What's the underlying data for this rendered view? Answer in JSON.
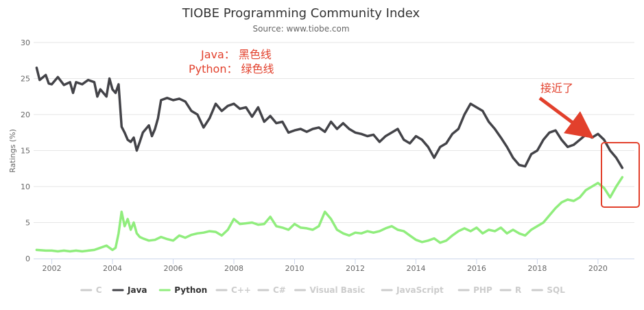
{
  "chart_data": {
    "type": "line",
    "title": "TIOBE Programming Community Index",
    "subtitle": "Source: www.tiobe.com",
    "ylabel": "Ratings (%)",
    "xlabel": "",
    "xlim": [
      2001.4,
      2021.2
    ],
    "ylim": [
      0,
      30
    ],
    "yticks": [
      0,
      5,
      10,
      15,
      20,
      25,
      30
    ],
    "xticks": [
      2002,
      2004,
      2006,
      2008,
      2010,
      2012,
      2014,
      2016,
      2018,
      2020
    ],
    "grid": true,
    "legend_position": "bottom",
    "legend": [
      {
        "name": "C",
        "active": false
      },
      {
        "name": "Java",
        "active": true
      },
      {
        "name": "Python",
        "active": true
      },
      {
        "name": "C++",
        "active": false
      },
      {
        "name": "C#",
        "active": false
      },
      {
        "name": "Visual Basic",
        "active": false
      },
      {
        "name": "JavaScript",
        "active": false
      },
      {
        "name": "PHP",
        "active": false
      },
      {
        "name": "R",
        "active": false
      },
      {
        "name": "SQL",
        "active": false
      }
    ],
    "series": [
      {
        "name": "Java",
        "color": "#434348",
        "x": [
          2001.5,
          2001.6,
          2001.8,
          2001.9,
          2002.0,
          2002.2,
          2002.4,
          2002.6,
          2002.7,
          2002.8,
          2003.0,
          2003.2,
          2003.4,
          2003.5,
          2003.6,
          2003.8,
          2003.9,
          2004.0,
          2004.1,
          2004.2,
          2004.3,
          2004.4,
          2004.5,
          2004.6,
          2004.7,
          2004.8,
          2004.9,
          2005.0,
          2005.2,
          2005.3,
          2005.4,
          2005.5,
          2005.6,
          2005.8,
          2006.0,
          2006.2,
          2006.4,
          2006.6,
          2006.8,
          2007.0,
          2007.2,
          2007.4,
          2007.6,
          2007.8,
          2008.0,
          2008.2,
          2008.4,
          2008.6,
          2008.8,
          2009.0,
          2009.2,
          2009.4,
          2009.6,
          2009.8,
          2010.0,
          2010.2,
          2010.4,
          2010.6,
          2010.8,
          2011.0,
          2011.2,
          2011.4,
          2011.6,
          2011.8,
          2012.0,
          2012.2,
          2012.4,
          2012.6,
          2012.8,
          2013.0,
          2013.2,
          2013.4,
          2013.6,
          2013.8,
          2014.0,
          2014.2,
          2014.4,
          2014.6,
          2014.8,
          2015.0,
          2015.2,
          2015.4,
          2015.6,
          2015.8,
          2016.0,
          2016.2,
          2016.4,
          2016.6,
          2016.8,
          2017.0,
          2017.2,
          2017.4,
          2017.6,
          2017.8,
          2018.0,
          2018.2,
          2018.4,
          2018.6,
          2018.8,
          2019.0,
          2019.2,
          2019.4,
          2019.6,
          2019.8,
          2020.0,
          2020.2,
          2020.4,
          2020.6,
          2020.8
        ],
        "values": [
          26.5,
          24.8,
          25.5,
          24.3,
          24.2,
          25.2,
          24.1,
          24.5,
          23.0,
          24.5,
          24.2,
          24.8,
          24.5,
          22.5,
          23.5,
          22.5,
          25.0,
          23.5,
          23.0,
          24.2,
          18.3,
          17.5,
          16.5,
          16.2,
          16.8,
          15.0,
          16.2,
          17.5,
          18.5,
          17.0,
          18.0,
          19.5,
          22.0,
          22.3,
          22.0,
          22.2,
          21.8,
          20.5,
          20.0,
          18.2,
          19.5,
          21.5,
          20.5,
          21.2,
          21.5,
          20.8,
          21.0,
          19.7,
          21.0,
          19.0,
          19.8,
          18.8,
          19.0,
          17.5,
          17.8,
          18.0,
          17.6,
          18.0,
          18.2,
          17.6,
          19.0,
          18.0,
          18.8,
          18.0,
          17.5,
          17.3,
          17.0,
          17.2,
          16.2,
          17.0,
          17.5,
          18.0,
          16.5,
          16.0,
          17.0,
          16.5,
          15.5,
          14.0,
          15.5,
          16.0,
          17.3,
          18.0,
          20.0,
          21.5,
          21.0,
          20.5,
          19.0,
          18.0,
          16.8,
          15.5,
          14.0,
          13.0,
          12.8,
          14.5,
          15.0,
          16.5,
          17.5,
          17.8,
          16.5,
          15.5,
          15.8,
          16.5,
          17.2,
          16.8,
          17.3,
          16.5,
          15.0,
          14.0,
          12.6
        ]
      },
      {
        "name": "Python",
        "color": "#90ed7d",
        "x": [
          2001.5,
          2001.8,
          2002.0,
          2002.2,
          2002.4,
          2002.6,
          2002.8,
          2003.0,
          2003.2,
          2003.4,
          2003.6,
          2003.8,
          2003.9,
          2004.0,
          2004.1,
          2004.2,
          2004.3,
          2004.4,
          2004.5,
          2004.6,
          2004.7,
          2004.8,
          2004.9,
          2005.0,
          2005.2,
          2005.4,
          2005.6,
          2005.8,
          2006.0,
          2006.2,
          2006.4,
          2006.6,
          2006.8,
          2007.0,
          2007.2,
          2007.4,
          2007.6,
          2007.8,
          2008.0,
          2008.2,
          2008.4,
          2008.6,
          2008.8,
          2009.0,
          2009.2,
          2009.4,
          2009.6,
          2009.8,
          2010.0,
          2010.2,
          2010.4,
          2010.6,
          2010.8,
          2011.0,
          2011.2,
          2011.4,
          2011.6,
          2011.8,
          2012.0,
          2012.2,
          2012.4,
          2012.6,
          2012.8,
          2013.0,
          2013.2,
          2013.4,
          2013.6,
          2013.8,
          2014.0,
          2014.2,
          2014.4,
          2014.6,
          2014.8,
          2015.0,
          2015.2,
          2015.4,
          2015.6,
          2015.8,
          2016.0,
          2016.2,
          2016.4,
          2016.6,
          2016.8,
          2017.0,
          2017.2,
          2017.4,
          2017.6,
          2017.8,
          2018.0,
          2018.2,
          2018.4,
          2018.6,
          2018.8,
          2019.0,
          2019.2,
          2019.4,
          2019.6,
          2019.8,
          2020.0,
          2020.2,
          2020.4,
          2020.6,
          2020.8
        ],
        "values": [
          1.2,
          1.1,
          1.1,
          1.0,
          1.1,
          1.0,
          1.1,
          1.0,
          1.1,
          1.2,
          1.5,
          1.8,
          1.5,
          1.2,
          1.5,
          3.5,
          6.5,
          4.5,
          5.5,
          4.0,
          5.0,
          3.5,
          3.0,
          2.8,
          2.5,
          2.6,
          3.0,
          2.7,
          2.5,
          3.2,
          2.9,
          3.3,
          3.5,
          3.6,
          3.8,
          3.7,
          3.2,
          4.0,
          5.5,
          4.8,
          4.9,
          5.0,
          4.7,
          4.8,
          5.8,
          4.5,
          4.3,
          4.0,
          4.8,
          4.3,
          4.2,
          4.0,
          4.5,
          6.5,
          5.5,
          4.0,
          3.5,
          3.2,
          3.6,
          3.5,
          3.8,
          3.6,
          3.8,
          4.2,
          4.5,
          4.0,
          3.8,
          3.2,
          2.6,
          2.3,
          2.5,
          2.8,
          2.2,
          2.5,
          3.2,
          3.8,
          4.2,
          3.8,
          4.3,
          3.5,
          4.0,
          3.8,
          4.3,
          3.5,
          4.0,
          3.5,
          3.2,
          4.0,
          4.5,
          5.0,
          6.0,
          7.0,
          7.8,
          8.2,
          8.0,
          8.5,
          9.5,
          10.0,
          10.5,
          9.8,
          8.5,
          10.0,
          11.3
        ]
      }
    ]
  },
  "annotations": {
    "legend_note_java": "Java： 黑色线",
    "legend_note_python": "Python： 绿色线",
    "arrow_note": "接近了"
  },
  "colors": {
    "annotation": "#e2402c",
    "grid": "#e6e6e6",
    "inactive_legend": "#cccccc",
    "active_legend_text": "#333333"
  }
}
